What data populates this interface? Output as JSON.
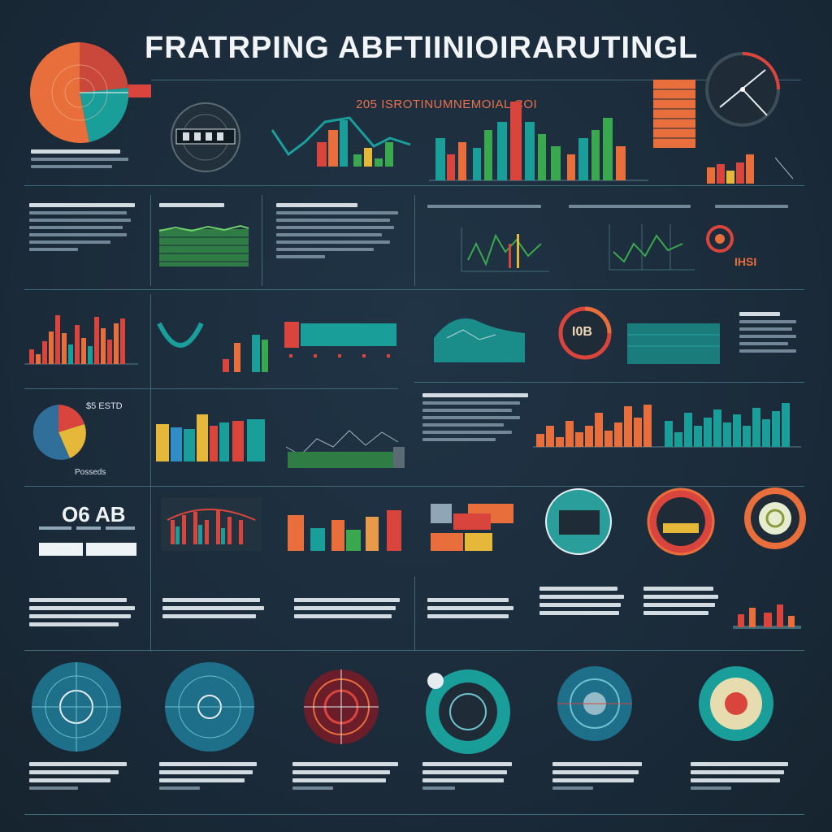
{
  "header": {
    "title": "FRATRPING ABFTIINIOIRARUTINGL",
    "subtitle": "205 ISROTINUMNEMOIAL COI"
  },
  "labels": {
    "big_number": "O6 AB",
    "mid_value": "$5 ESTD",
    "gauge_value": "I0B",
    "small_badge": "IHSI",
    "pie_caption": "Posseds"
  },
  "colors": {
    "background": "#1b2b3a",
    "orange": "#e86f3c",
    "teal": "#1a9e9a",
    "red": "#d9453c",
    "green": "#3aa84f",
    "yellow": "#e6b83a",
    "blue": "#2f8fc4",
    "gridline": "#3f6b78"
  },
  "icons": [
    "pie-chart-icon",
    "radar-dial-icon",
    "gauge-icon",
    "target-icon"
  ]
}
